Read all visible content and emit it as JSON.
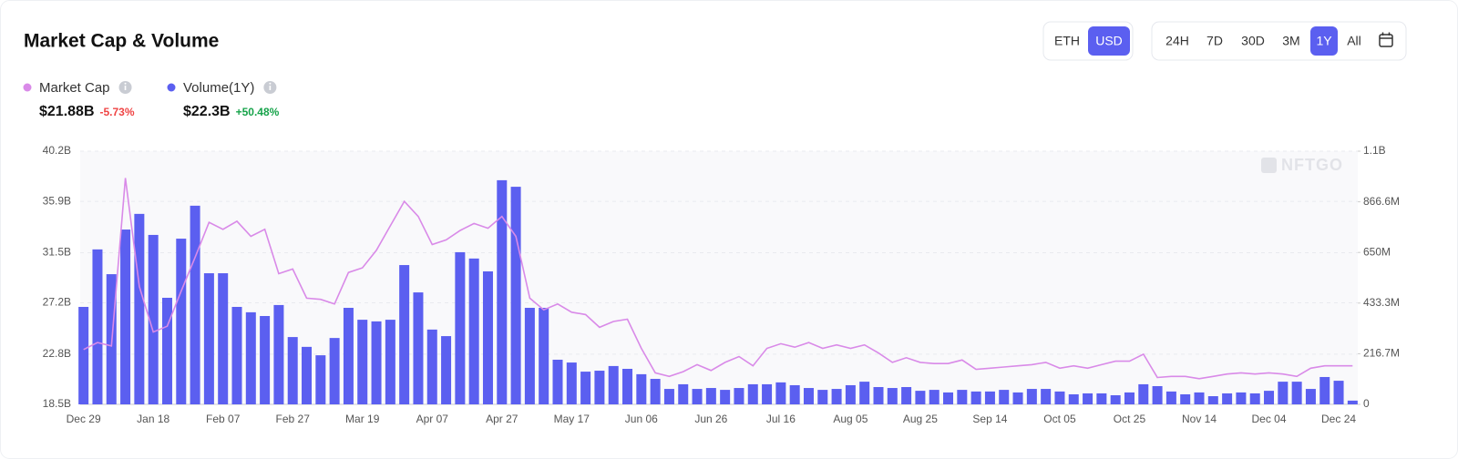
{
  "controls": {
    "currency": [
      "ETH",
      "USD"
    ],
    "currency_active": "USD",
    "ranges": [
      "24H",
      "7D",
      "30D",
      "3M",
      "1Y",
      "All"
    ],
    "range_active": "1Y"
  },
  "chart_data": {
    "type": "combo",
    "title": "Market Cap & Volume",
    "watermark": "NFTGO",
    "categories": [
      "Dec 29",
      null,
      null,
      null,
      null,
      "Jan 18",
      null,
      null,
      null,
      null,
      "Feb 07",
      null,
      null,
      null,
      null,
      "Feb 27",
      null,
      null,
      null,
      null,
      "Mar 19",
      null,
      null,
      null,
      null,
      "Apr 07",
      null,
      null,
      null,
      null,
      "Apr 27",
      null,
      null,
      null,
      null,
      "May 17",
      null,
      null,
      null,
      null,
      "Jun 06",
      null,
      null,
      null,
      null,
      "Jun 26",
      null,
      null,
      null,
      null,
      "Jul 16",
      null,
      null,
      null,
      null,
      "Aug 05",
      null,
      null,
      null,
      null,
      "Aug 25",
      null,
      null,
      null,
      null,
      "Sep 14",
      null,
      null,
      null,
      null,
      "Oct 05",
      null,
      null,
      null,
      null,
      "Oct 25",
      null,
      null,
      null,
      null,
      "Nov 14",
      null,
      null,
      null,
      null,
      "Dec 04",
      null,
      null,
      null,
      null,
      "Dec 24",
      null
    ],
    "series": [
      {
        "name": "Market Cap",
        "type": "line",
        "axis": "y",
        "color": "#d98ae8",
        "summary": "$21.88B",
        "change": "-5.73%",
        "change_color": "#ef4444",
        "values": [
          23.2,
          23.8,
          23.5,
          37.9,
          28.6,
          24.7,
          25.2,
          28.2,
          31.1,
          34.1,
          33.5,
          34.2,
          32.9,
          33.5,
          29.7,
          30.1,
          27.6,
          27.5,
          27.1,
          29.8,
          30.2,
          31.7,
          33.8,
          35.9,
          34.6,
          32.2,
          32.6,
          33.4,
          34.0,
          33.6,
          34.6,
          32.9,
          27.6,
          26.6,
          27.1,
          26.4,
          26.2,
          25.1,
          25.6,
          25.8,
          23.3,
          21.2,
          20.9,
          21.3,
          21.9,
          21.4,
          22.1,
          22.6,
          21.8,
          23.3,
          23.7,
          23.4,
          23.8,
          23.3,
          23.6,
          23.3,
          23.6,
          22.9,
          22.1,
          22.5,
          22.1,
          22.0,
          22.0,
          22.3,
          21.5,
          21.6,
          21.7,
          21.8,
          21.9,
          22.1,
          21.6,
          21.8,
          21.6,
          21.9,
          22.2,
          22.2,
          22.8,
          20.8,
          20.9,
          20.9,
          20.7,
          20.9,
          21.1,
          21.2,
          21.1,
          21.2,
          21.1,
          20.9,
          21.6,
          21.8,
          21.8,
          21.8
        ]
      },
      {
        "name": "Volume(1Y)",
        "type": "bar",
        "axis": "y2",
        "color": "#5b5ff0",
        "summary": "$22.3B",
        "change": "+50.48%",
        "change_color": "#16a34a",
        "values": [
          417,
          663,
          557,
          748,
          815,
          725,
          456,
          709,
          850,
          561,
          561,
          417,
          394,
          378,
          425,
          288,
          246,
          210,
          284,
          413,
          362,
          355,
          362,
          596,
          479,
          320,
          292,
          651,
          624,
          569,
          959,
          931,
          413,
          413,
          191,
          179,
          140,
          144,
          164,
          152,
          129,
          109,
          66,
          86,
          66,
          70,
          62,
          70,
          86,
          86,
          94,
          82,
          70,
          62,
          66,
          82,
          97,
          74,
          70,
          74,
          58,
          62,
          51,
          62,
          55,
          55,
          62,
          51,
          66,
          66,
          55,
          43,
          47,
          47,
          39,
          51,
          86,
          78,
          55,
          43,
          51,
          35,
          47,
          51,
          47,
          58,
          97,
          97,
          66,
          117,
          101,
          16
        ]
      }
    ],
    "ylim": [
      18.5,
      40.2
    ],
    "yticks": [
      {
        "value": 18.5,
        "label": "18.5B"
      },
      {
        "value": 22.8,
        "label": "22.8B"
      },
      {
        "value": 27.2,
        "label": "27.2B"
      },
      {
        "value": 31.5,
        "label": "31.5B"
      },
      {
        "value": 35.9,
        "label": "35.9B"
      },
      {
        "value": 40.2,
        "label": "40.2B"
      }
    ],
    "y2lim": [
      0,
      1083.3
    ],
    "y2ticks": [
      0,
      {
        "value": 216.7,
        "label": "216.7M"
      },
      {
        "value": 433.3,
        "label": "433.3M"
      },
      {
        "value": 650,
        "label": "650M"
      },
      {
        "value": 866.6,
        "label": "866.6M"
      },
      {
        "value": 1083.3,
        "label": "1.1B"
      }
    ],
    "grid": true
  }
}
